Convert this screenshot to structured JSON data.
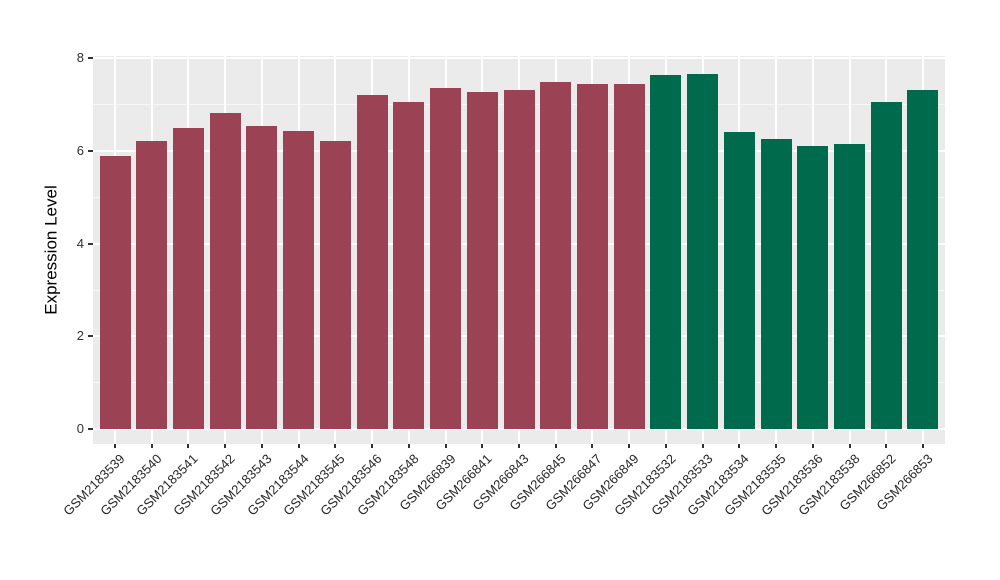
{
  "chart_data": {
    "type": "bar",
    "title": "",
    "xlabel": "",
    "ylabel": "Expression Level",
    "categories": [
      "GSM2183539",
      "GSM2183540",
      "GSM2183541",
      "GSM2183542",
      "GSM2183543",
      "GSM2183544",
      "GSM2183545",
      "GSM2183546",
      "GSM2183548",
      "GSM266839",
      "GSM266841",
      "GSM266843",
      "GSM266845",
      "GSM266847",
      "GSM266849",
      "GSM2183532",
      "GSM2183533",
      "GSM2183534",
      "GSM2183535",
      "GSM2183536",
      "GSM2183538",
      "GSM266852",
      "GSM266853"
    ],
    "values": [
      5.9,
      6.22,
      6.5,
      6.82,
      6.53,
      6.44,
      6.21,
      7.2,
      7.06,
      7.35,
      7.27,
      7.31,
      7.5,
      7.45,
      7.44,
      7.64,
      7.67,
      6.42,
      6.25,
      6.1,
      6.15,
      7.06,
      7.32
    ],
    "bar_colors": [
      "#9B4254",
      "#9B4254",
      "#9B4254",
      "#9B4254",
      "#9B4254",
      "#9B4254",
      "#9B4254",
      "#9B4254",
      "#9B4254",
      "#9B4254",
      "#9B4254",
      "#9B4254",
      "#9B4254",
      "#9B4254",
      "#9B4254",
      "#006B4C",
      "#006B4C",
      "#006B4C",
      "#006B4C",
      "#006B4C",
      "#006B4C",
      "#006B4C",
      "#006B4C"
    ],
    "group_colors": {
      "maroon": "#9B4254",
      "green": "#006B4C"
    },
    "yticks": [
      0,
      2,
      4,
      6,
      8
    ],
    "yticks_minor": [
      1,
      3,
      5,
      7
    ],
    "ylim": [
      -0.32,
      8.05
    ],
    "grid": "on",
    "legend": "none",
    "panel_bg": "#EBEBEB",
    "x_tick_rotation": 45
  }
}
